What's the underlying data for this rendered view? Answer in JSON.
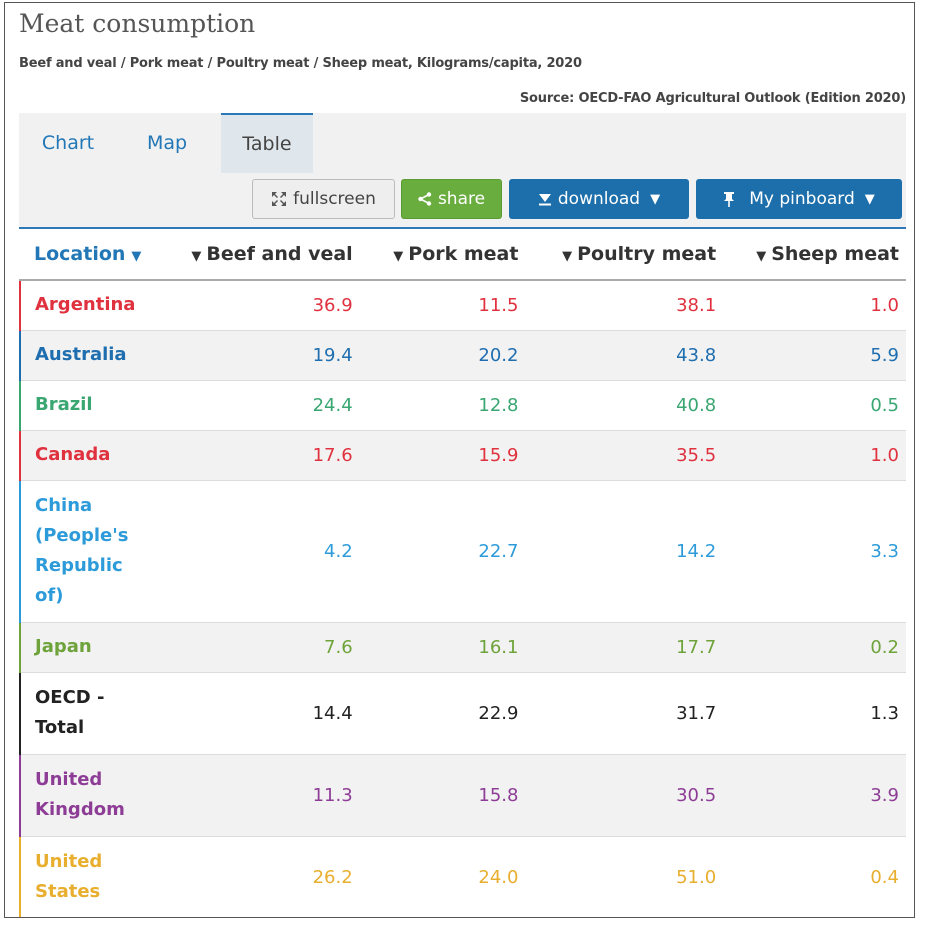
{
  "header": {
    "title": "Meat consumption",
    "subtitle": "Beef and veal / Pork meat / Poultry meat / Sheep meat, Kilograms/capita, 2020",
    "source": "Source: OECD-FAO Agricultural Outlook (Edition 2020)"
  },
  "tabs": [
    {
      "label": "Chart"
    },
    {
      "label": "Map"
    },
    {
      "label": "Table",
      "active": true
    }
  ],
  "toolbar": {
    "fullscreen_label": "fullscreen",
    "share_label": "share",
    "download_label": "download",
    "pinboard_label": "My pinboard"
  },
  "columns": [
    "Location",
    "Beef and veal",
    "Pork meat",
    "Poultry meat",
    "Sheep meat"
  ],
  "rows": [
    {
      "location": "Argentina",
      "values": [
        "36.9",
        "11.5",
        "38.1",
        "1.0"
      ],
      "color": "#e0313e"
    },
    {
      "location": "Australia",
      "values": [
        "19.4",
        "20.2",
        "43.8",
        "5.9"
      ],
      "color": "#1f6eb0"
    },
    {
      "location": "Brazil",
      "values": [
        "24.4",
        "12.8",
        "40.8",
        "0.5"
      ],
      "color": "#3aa672"
    },
    {
      "location": "Canada",
      "values": [
        "17.6",
        "15.9",
        "35.5",
        "1.0"
      ],
      "color": "#e0313e"
    },
    {
      "location": "China (People's Republic of)",
      "values": [
        "4.2",
        "22.7",
        "14.2",
        "3.3"
      ],
      "color": "#2d9bd9"
    },
    {
      "location": "Japan",
      "values": [
        "7.6",
        "16.1",
        "17.7",
        "0.2"
      ],
      "color": "#6ea23a"
    },
    {
      "location": "OECD - Total",
      "values": [
        "14.4",
        "22.9",
        "31.7",
        "1.3"
      ],
      "color": "#222222"
    },
    {
      "location": "United Kingdom",
      "values": [
        "11.3",
        "15.8",
        "30.5",
        "3.9"
      ],
      "color": "#8e3d96"
    },
    {
      "location": "United States",
      "values": [
        "26.2",
        "24.0",
        "51.0",
        "0.4"
      ],
      "color": "#e8ae2e"
    }
  ]
}
